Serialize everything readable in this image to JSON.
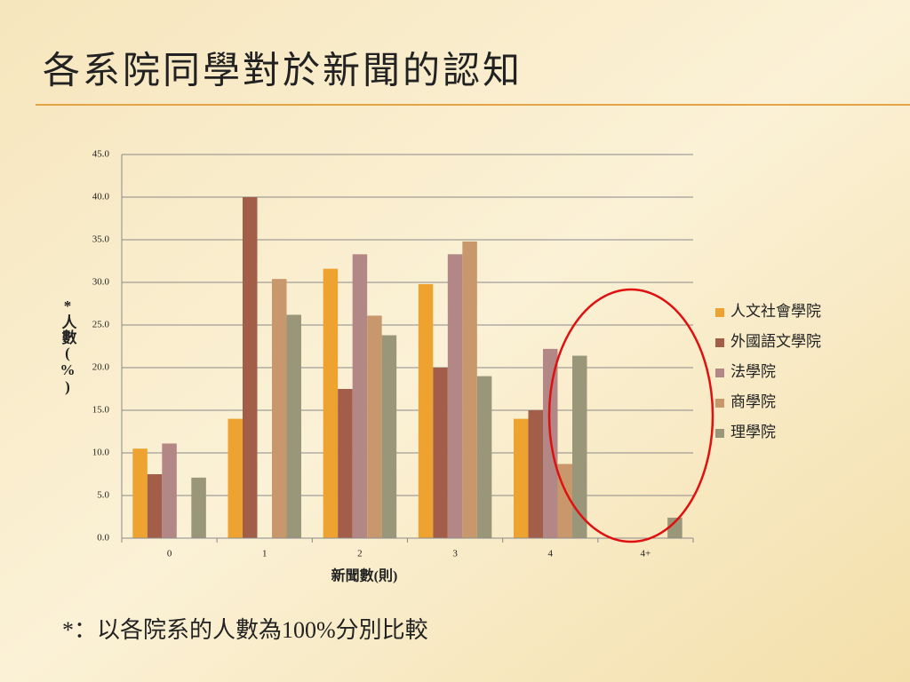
{
  "title": "各系院同學對於新聞的認知",
  "footnote": "*：以各院系的人數為100%分別比較",
  "chart_data": {
    "type": "bar",
    "categories": [
      "0",
      "1",
      "2",
      "3",
      "4",
      "4+"
    ],
    "x_label": "新聞數(則)",
    "y_label": "*人數(%)",
    "ylim": [
      0,
      45
    ],
    "yticks": [
      {
        "value": 0,
        "label": "0.0"
      },
      {
        "value": 5,
        "label": "5.0"
      },
      {
        "value": 10,
        "label": "10.0"
      },
      {
        "value": 15,
        "label": "15.0"
      },
      {
        "value": 20,
        "label": "20.0"
      },
      {
        "value": 25,
        "label": "25.0"
      },
      {
        "value": 30,
        "label": "30.0"
      },
      {
        "value": 35,
        "label": "35.0"
      },
      {
        "value": 40,
        "label": "40.0"
      },
      {
        "value": 45,
        "label": "45.0"
      }
    ],
    "grid": true,
    "legend": "right",
    "series": [
      {
        "name": "人文社會學院",
        "color": "#eea331",
        "values": [
          10.5,
          14.0,
          31.6,
          29.8,
          14.0,
          0
        ]
      },
      {
        "name": "外國語文學院",
        "color": "#a35e4a",
        "values": [
          7.5,
          40.0,
          17.5,
          20.0,
          15.0,
          0
        ]
      },
      {
        "name": "法學院",
        "color": "#b38786",
        "values": [
          11.1,
          0,
          33.3,
          33.3,
          22.2,
          0
        ]
      },
      {
        "name": "商學院",
        "color": "#c8986c",
        "values": [
          0,
          30.4,
          26.1,
          34.8,
          8.7,
          0
        ]
      },
      {
        "name": "理學院",
        "color": "#9a9679",
        "values": [
          7.1,
          26.2,
          23.8,
          19.0,
          21.4,
          2.4
        ]
      }
    ]
  }
}
